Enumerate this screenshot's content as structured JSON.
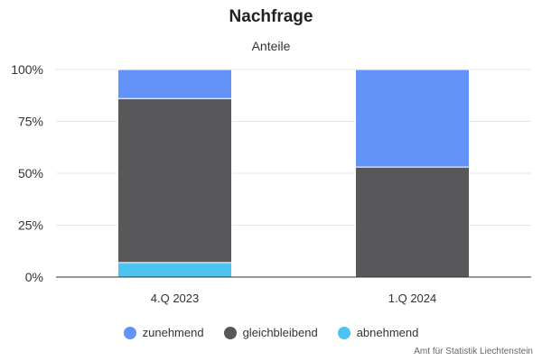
{
  "chart_data": {
    "type": "bar",
    "stacked": true,
    "title": "Nachfrage",
    "subtitle": "Anteile",
    "categories": [
      "4.Q 2023",
      "1.Q 2024"
    ],
    "series": [
      {
        "name": "abnehmend",
        "values": [
          7,
          0
        ],
        "color": "#4cc3f0"
      },
      {
        "name": "gleichbleibend",
        "values": [
          79,
          53
        ],
        "color": "#58585a"
      },
      {
        "name": "zunehmend",
        "values": [
          14,
          47
        ],
        "color": "#6393f8"
      }
    ],
    "ylim": [
      0,
      100
    ],
    "yticks": [
      0,
      25,
      50,
      75,
      100
    ],
    "ytick_labels": [
      "0%",
      "25%",
      "50%",
      "75%",
      "100%"
    ],
    "grid": true,
    "legend": {
      "position": "bottom",
      "order": [
        "zunehmend",
        "gleichbleibend",
        "abnehmend"
      ]
    }
  },
  "credits": "Amt für Statistik Liechtenstein"
}
